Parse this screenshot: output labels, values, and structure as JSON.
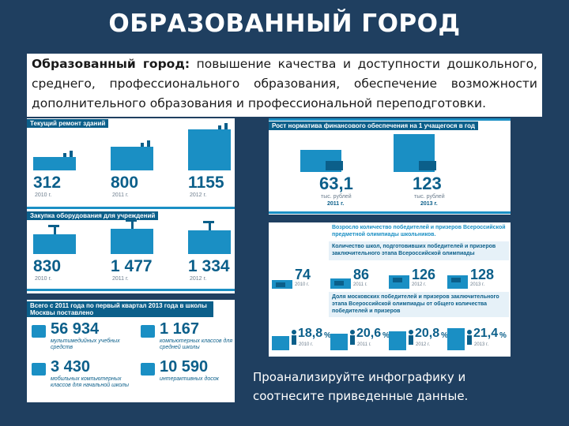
{
  "title": "ОБРАЗОВАННЫЙ ГОРОД",
  "lead": {
    "bold": "Образованный город:",
    "text": " повышение качества и доступности дошкольного, среднего, профессионального образования, обеспечение возможности дополнительного образования и профессиональной переподготовки."
  },
  "repair": {
    "header": "Текущий ремонт зданий",
    "items": [
      {
        "value": "312",
        "year": "2010 г.",
        "level": 0.12
      },
      {
        "value": "800",
        "year": "2011 г.",
        "level": 0.45
      },
      {
        "value": "1155",
        "year": "2012 г.",
        "level": 1.0
      }
    ]
  },
  "equipment": {
    "header": "Закупка оборудования для учреждений",
    "items": [
      {
        "value": "830",
        "year": "2010 г.",
        "level": 0.45
      },
      {
        "value": "1 477",
        "year": "2011 г.",
        "level": 0.7
      },
      {
        "value": "1 334",
        "year": "2012 г.",
        "level": 0.65
      }
    ]
  },
  "supplied": {
    "header": "Всего с 2011 года по первый квартал 2013 года в школы Москвы поставлено",
    "items": [
      {
        "value": "56 934",
        "caption": "мультимедийных учебных средств",
        "icon": "monitor-icon"
      },
      {
        "value": "1 167",
        "caption": "компьютерных классов для средней школы",
        "icon": "network-icon"
      },
      {
        "value": "3 430",
        "caption": "мобильных компьютерных классов для начальной школы",
        "icon": "phone-icon"
      },
      {
        "value": "10 590",
        "caption": "интерактивных досок",
        "icon": "board-icon"
      }
    ]
  },
  "funding": {
    "header": "Рост норматива финансового обеспечения на 1 учащегося в год",
    "items": [
      {
        "value": "63,1",
        "unit": "тыс. рублей",
        "year": "2011 г.",
        "level": 0.5
      },
      {
        "value": "123",
        "unit": "тыс. рублей",
        "year": "2013 г.",
        "level": 1.0
      }
    ]
  },
  "olympiad": {
    "header": "Возросло количество победителей и призеров Всероссийской предметной олимпиады школьников.",
    "box1": "Количество школ, подготовивших победителей и призеров заключительного этапа Всероссийской олимпиады",
    "schools": [
      {
        "value": "74",
        "year": "2010 г.",
        "level": 0.35
      },
      {
        "value": "86",
        "year": "2011 г.",
        "level": 0.5
      },
      {
        "value": "126",
        "year": "2012 г.",
        "level": 0.75
      },
      {
        "value": "128",
        "year": "2013 г.",
        "level": 0.8
      }
    ],
    "box2": "Доля московских победителей и призеров заключительного этапа Всероссийской олимпиады от общего количества победителей и призеров",
    "shares": [
      {
        "value": "18,8",
        "pct": "%",
        "year": "2010 г.",
        "level": 0.4
      },
      {
        "value": "20,6",
        "pct": "%",
        "year": "2011 г.",
        "level": 0.55
      },
      {
        "value": "20,8",
        "pct": "%",
        "year": "2012 г.",
        "level": 0.65
      },
      {
        "value": "21,4",
        "pct": "%",
        "year": "2013 г.",
        "level": 0.85
      }
    ]
  },
  "instruction": "Проанализируйте инфографику и соотнесите приведенные данные.",
  "colors": {
    "accent": "#1a8fc4",
    "dark": "#0b5f8a",
    "background": "#1f3f60"
  }
}
